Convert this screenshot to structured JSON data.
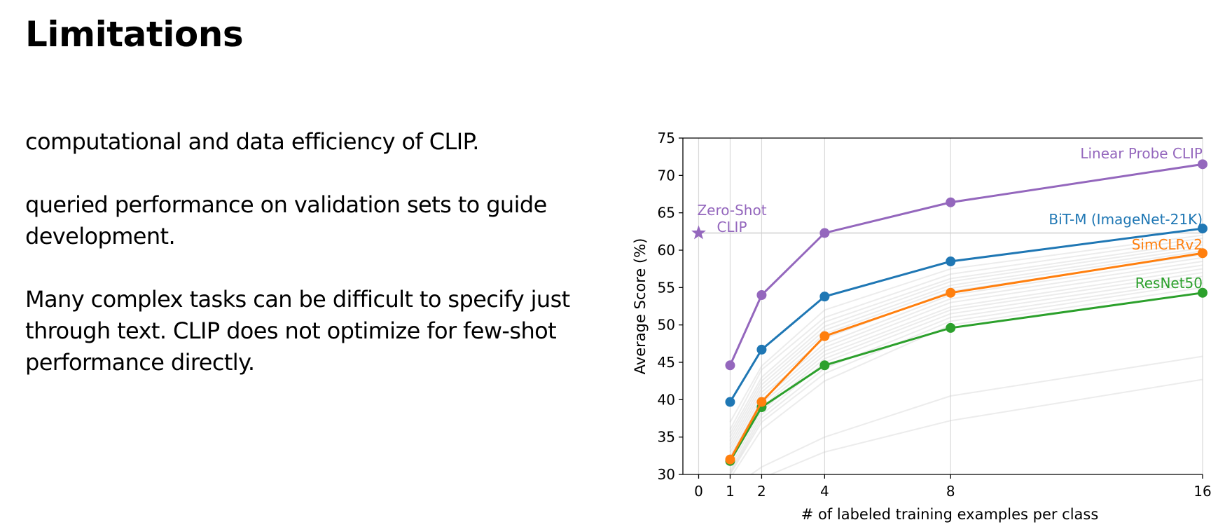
{
  "slide": {
    "title": "Limitations",
    "paragraphs": [
      "computational and data efficiency of CLIP.",
      "queried performance on validation sets to guide development.",
      "Many complex tasks can be difficult to specify just through text. CLIP does not optimize for few-shot performance directly."
    ]
  },
  "chart_data": {
    "type": "line",
    "title": "",
    "xlabel": "# of labeled training examples per class",
    "ylabel": "Average Score (%)",
    "xlim": [
      -0.5,
      16
    ],
    "ylim": [
      30,
      75
    ],
    "xticks": [
      0,
      1,
      2,
      4,
      8,
      16
    ],
    "yticks": [
      30,
      35,
      40,
      45,
      50,
      55,
      60,
      65,
      70,
      75
    ],
    "grid": true,
    "x": [
      1,
      2,
      4,
      8,
      16
    ],
    "series": [
      {
        "name": "Linear Probe CLIP",
        "color": "#9467bd",
        "values": [
          44.6,
          54.0,
          62.3,
          66.4,
          71.5
        ]
      },
      {
        "name": "BiT-M (ImageNet-21K)",
        "color": "#1f77b4",
        "values": [
          39.7,
          46.7,
          53.8,
          58.5,
          62.9
        ]
      },
      {
        "name": "SimCLRv2",
        "color": "#ff7f0e",
        "values": [
          32.0,
          39.7,
          48.5,
          54.3,
          59.6
        ]
      },
      {
        "name": "ResNet50",
        "color": "#2ca02c",
        "values": [
          31.8,
          39.0,
          44.6,
          49.6,
          54.3
        ]
      }
    ],
    "zero_shot": {
      "label_line1": "Zero-Shot",
      "label_line2": "CLIP",
      "x": 0,
      "y": 62.3,
      "color": "#9467bd",
      "reference_line": true
    },
    "background_series_color": "#c8c8c8",
    "background_series": [
      [
        37.0,
        44.5,
        52.0,
        57.5,
        62.0
      ],
      [
        36.0,
        44.0,
        51.0,
        56.8,
        61.6
      ],
      [
        35.5,
        43.0,
        50.4,
        56.2,
        61.1
      ],
      [
        35.0,
        42.5,
        49.8,
        55.8,
        60.7
      ],
      [
        34.5,
        42.0,
        49.3,
        55.3,
        60.3
      ],
      [
        34.0,
        41.5,
        48.8,
        54.9,
        59.9
      ],
      [
        33.5,
        41.0,
        48.2,
        54.5,
        59.4
      ],
      [
        33.0,
        40.5,
        47.5,
        54.0,
        59.0
      ],
      [
        32.5,
        40.0,
        47.0,
        53.5,
        58.5
      ],
      [
        32.0,
        39.5,
        46.5,
        53.0,
        58.0
      ],
      [
        31.5,
        39.0,
        46.0,
        52.4,
        57.5
      ],
      [
        31.0,
        38.5,
        45.5,
        52.0,
        57.0
      ],
      [
        30.5,
        38.0,
        45.0,
        51.5,
        56.5
      ],
      [
        30.2,
        37.5,
        44.2,
        51.0,
        56.0
      ],
      [
        30.0,
        37.0,
        43.5,
        50.5,
        55.6
      ],
      [
        29.5,
        36.0,
        42.5,
        50.0,
        55.0
      ],
      [
        28.0,
        31.0,
        35.0,
        40.5,
        45.8
      ],
      [
        27.0,
        29.5,
        33.0,
        37.2,
        42.7
      ]
    ]
  }
}
